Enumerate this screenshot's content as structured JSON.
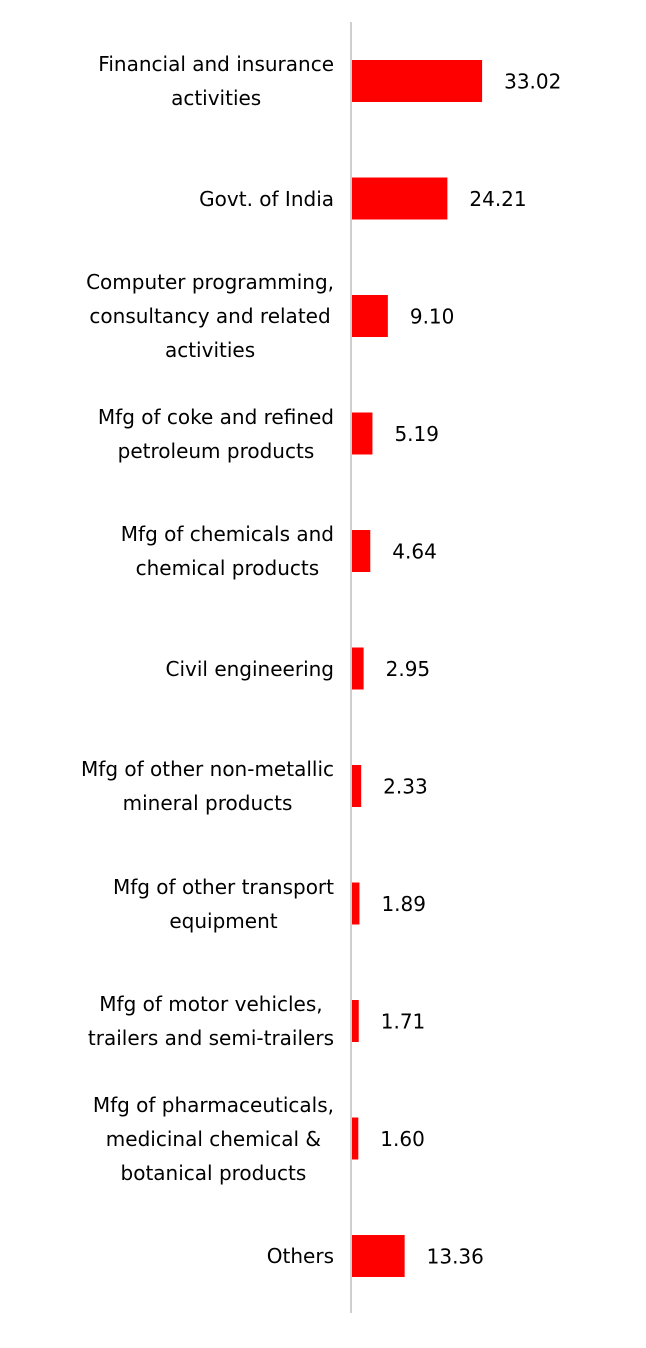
{
  "chart_data": {
    "type": "bar",
    "orientation": "horizontal",
    "color": "#ff0000",
    "categories": [
      "Financial and insurance\nactivities",
      "Govt. of India",
      "Computer programming,\nconsultancy and related\nactivities",
      "Mfg of coke and refined\npetroleum products",
      "Mfg of chemicals and\nchemical products",
      "Civil engineering",
      "Mfg of other non-metallic\nmineral products",
      "Mfg of other transport\nequipment",
      "Mfg of motor vehicles,\ntrailers and semi-trailers",
      "Mfg of pharmaceuticals,\nmedicinal chemical &\nbotanical products",
      "Others"
    ],
    "values": [
      33.02,
      24.21,
      9.1,
      5.19,
      4.64,
      2.95,
      2.33,
      1.89,
      1.71,
      1.6,
      13.36
    ],
    "value_labels": [
      "33.02",
      "24.21",
      "9.10",
      "5.19",
      "4.64",
      "2.95",
      "2.33",
      "1.89",
      "1.71",
      "1.60",
      "13.36"
    ]
  }
}
